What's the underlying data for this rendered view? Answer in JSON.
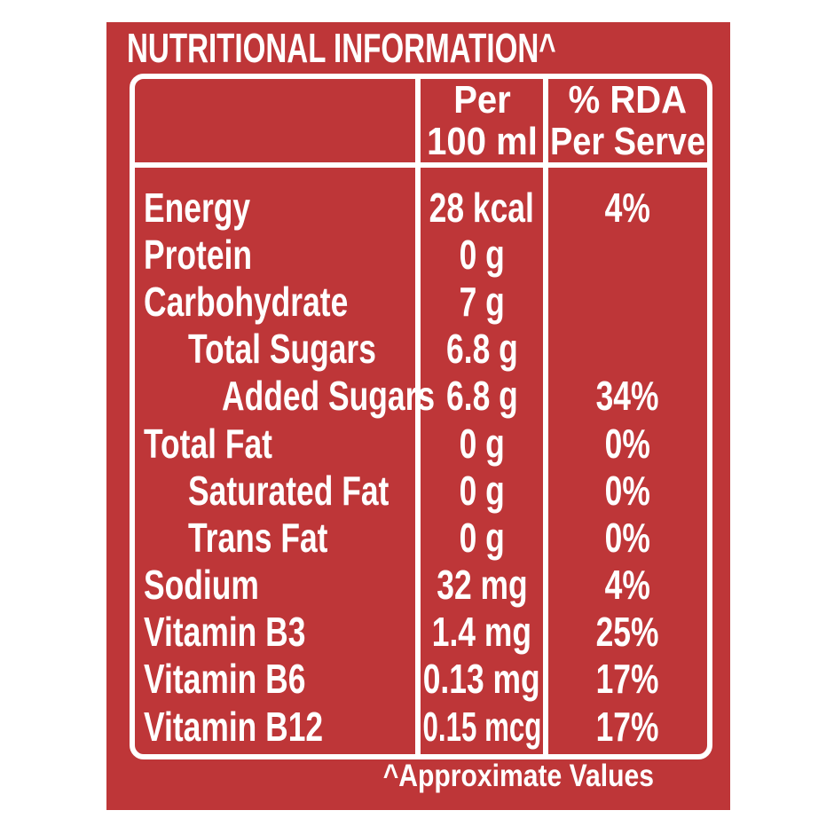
{
  "colors": {
    "label_red": "#be3638",
    "text_white": "#ffffff",
    "page_background": "#ffffff"
  },
  "label": {
    "title": "NUTRITIONAL INFORMATION^",
    "footnote": "^Approximate Values",
    "table": {
      "header": {
        "col1": "",
        "col2_lines": [
          "Per",
          "100 ml"
        ],
        "col3_lines": [
          "% RDA",
          "Per Serve"
        ]
      },
      "rows": [
        {
          "nutrient": "Energy",
          "indent": 0,
          "per_100ml": "28 kcal",
          "rda_per_serve": "4%"
        },
        {
          "nutrient": "Protein",
          "indent": 0,
          "per_100ml": "0 g",
          "rda_per_serve": ""
        },
        {
          "nutrient": "Carbohydrate",
          "indent": 0,
          "per_100ml": "7 g",
          "rda_per_serve": ""
        },
        {
          "nutrient": "Total Sugars",
          "indent": 1,
          "per_100ml": "6.8 g",
          "rda_per_serve": ""
        },
        {
          "nutrient": "Added Sugars",
          "indent": 2,
          "per_100ml": "6.8 g",
          "rda_per_serve": "34%"
        },
        {
          "nutrient": "Total Fat",
          "indent": 0,
          "per_100ml": "0 g",
          "rda_per_serve": "0%"
        },
        {
          "nutrient": "Saturated Fat",
          "indent": 1,
          "per_100ml": "0 g",
          "rda_per_serve": "0%"
        },
        {
          "nutrient": "Trans Fat",
          "indent": 1,
          "per_100ml": "0 g",
          "rda_per_serve": "0%"
        },
        {
          "nutrient": "Sodium",
          "indent": 0,
          "per_100ml": "32 mg",
          "rda_per_serve": "4%"
        },
        {
          "nutrient": "Vitamin B3",
          "indent": 0,
          "per_100ml": "1.4 mg",
          "rda_per_serve": "25%"
        },
        {
          "nutrient": "Vitamin B6",
          "indent": 0,
          "per_100ml": "0.13 mg",
          "rda_per_serve": "17%"
        },
        {
          "nutrient": "Vitamin B12",
          "indent": 0,
          "per_100ml": "0.15 mcg",
          "rda_per_serve": "17%"
        }
      ]
    }
  }
}
